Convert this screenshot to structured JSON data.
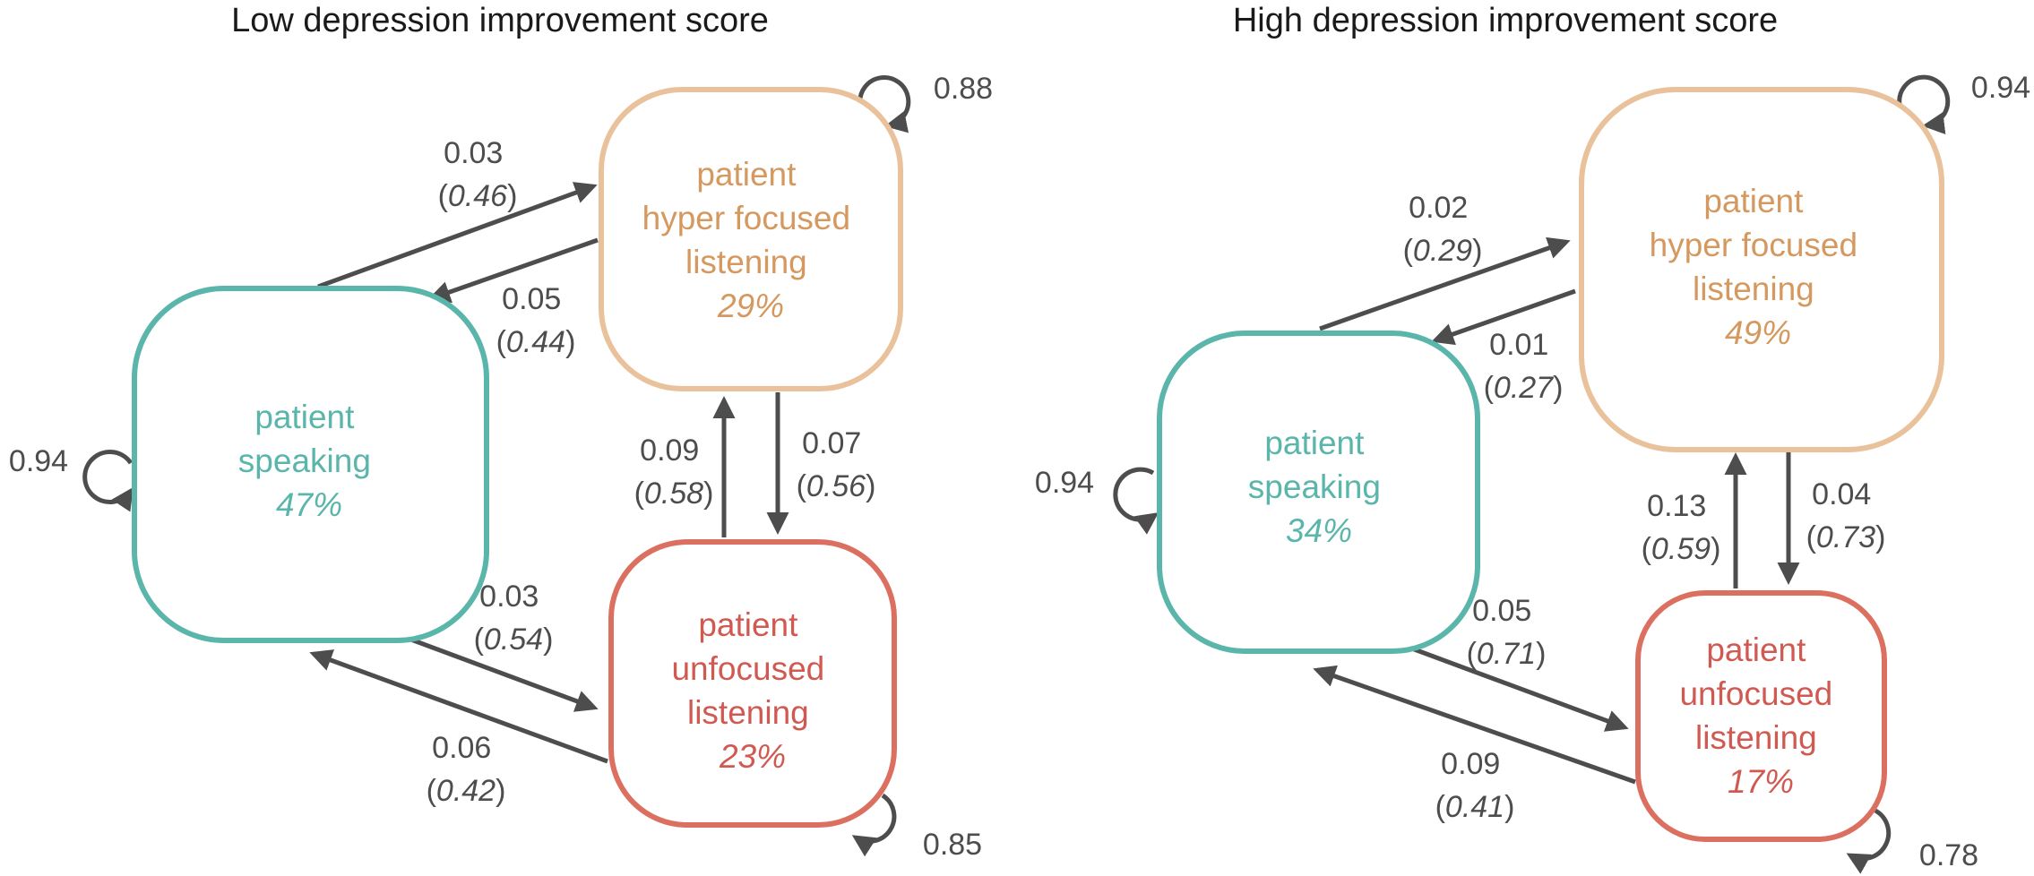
{
  "panels": [
    {
      "title": "Low depression improvement score",
      "colors": {
        "speaking": "#5ab5aa",
        "hyper": "#e9c29c",
        "unfocused": "#dc7060"
      },
      "nodes": {
        "speaking": {
          "line1": "patient",
          "line2": "speaking",
          "pct": "47%"
        },
        "hyper": {
          "line1": "patient",
          "line2": "hyper focused",
          "line3": "listening",
          "pct": "29%"
        },
        "unfocused": {
          "line1": "patient",
          "line2": "unfocused",
          "line3": "listening",
          "pct": "23%"
        }
      },
      "self_loops": {
        "speaking": "0.94",
        "hyper": "0.88",
        "unfocused": "0.85"
      },
      "edges": {
        "speaking_to_hyper": {
          "value": "0.03",
          "paren": "0.46"
        },
        "hyper_to_speaking": {
          "value": "0.05",
          "paren": "0.44"
        },
        "unfocused_to_hyper": {
          "value": "0.09",
          "paren": "0.58"
        },
        "hyper_to_unfocused": {
          "value": "0.07",
          "paren": "0.56"
        },
        "speaking_to_unfocused": {
          "value": "0.03",
          "paren": "0.54"
        },
        "unfocused_to_speaking": {
          "value": "0.06",
          "paren": "0.42"
        }
      }
    },
    {
      "title": "High depression improvement score",
      "colors": {
        "speaking": "#5ab5aa",
        "hyper": "#e9c29c",
        "unfocused": "#dc7060"
      },
      "nodes": {
        "speaking": {
          "line1": "patient",
          "line2": "speaking",
          "pct": "34%"
        },
        "hyper": {
          "line1": "patient",
          "line2": "hyper focused",
          "line3": "listening",
          "pct": "49%"
        },
        "unfocused": {
          "line1": "patient",
          "line2": "unfocused",
          "line3": "listening",
          "pct": "17%"
        }
      },
      "self_loops": {
        "speaking": "0.94",
        "hyper": "0.94",
        "unfocused": "0.78"
      },
      "edges": {
        "speaking_to_hyper": {
          "value": "0.02",
          "paren": "0.29"
        },
        "hyper_to_speaking": {
          "value": "0.01",
          "paren": "0.27"
        },
        "unfocused_to_hyper": {
          "value": "0.13",
          "paren": "0.59"
        },
        "hyper_to_unfocused": {
          "value": "0.04",
          "paren": "0.73"
        },
        "speaking_to_unfocused": {
          "value": "0.05",
          "paren": "0.71"
        },
        "unfocused_to_speaking": {
          "value": "0.09",
          "paren": "0.41"
        }
      }
    }
  ]
}
